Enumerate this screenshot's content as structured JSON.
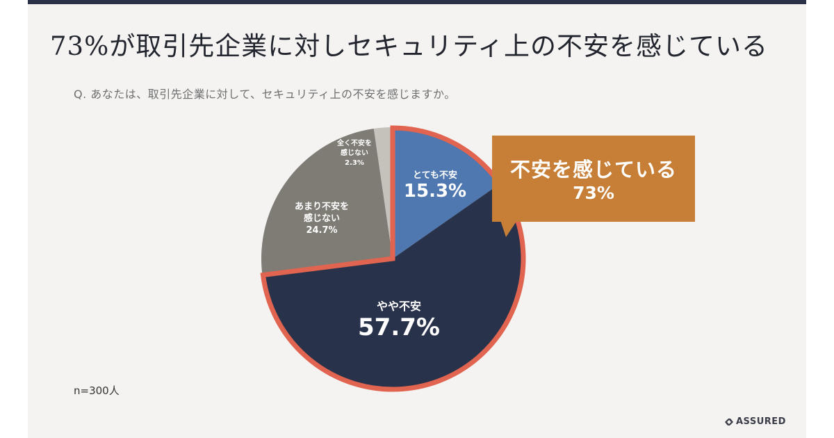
{
  "header": {
    "title": "73%が取引先企業に対しセキュリティ上の不安を感じている",
    "question": "Q. あなたは、取引先企業に対して、セキュリティ上の不安を感じますか。"
  },
  "footer": {
    "sample_size": "n=300人",
    "brand": "ASSURED"
  },
  "callout": {
    "label": "不安を感じている",
    "value": "73%"
  },
  "colors": {
    "very_anxious": "#4f77b0",
    "somewhat_anxious": "#28334b",
    "not_very": "#7f7c76",
    "not_at_all": "#c5c2bc",
    "highlight_outline": "#e0644f",
    "callout": "#c77f37",
    "background": "#f4f3f2",
    "topbar": "#2b3148"
  },
  "chart_data": {
    "type": "pie",
    "title": "73%が取引先企業に対しセキュリティ上の不安を感じている",
    "subtitle": "Q. あなたは、取引先企業に対して、セキュリティ上の不安を感じますか。",
    "start_angle_deg": 0,
    "direction": "clockwise",
    "slices": [
      {
        "label": "とても不安",
        "value": 15.3,
        "display": "15.3%",
        "color": "#4f77b0",
        "highlighted": true
      },
      {
        "label": "やや不安",
        "value": 57.7,
        "display": "57.7%",
        "color": "#28334b",
        "highlighted": true
      },
      {
        "label": "あまり不安を感じない",
        "label_lines": [
          "あまり不安を",
          "感じない"
        ],
        "value": 24.7,
        "display": "24.7%",
        "color": "#7f7c76",
        "highlighted": false
      },
      {
        "label": "全く不安を感じない",
        "label_lines": [
          "全く不安を",
          "感じない"
        ],
        "value": 2.3,
        "display": "2.3%",
        "color": "#c5c2bc",
        "highlighted": false
      }
    ],
    "highlight_group": {
      "label": "不安を感じている",
      "value": 73,
      "display": "73%"
    },
    "annotation": "n=300人",
    "legend": "none"
  }
}
